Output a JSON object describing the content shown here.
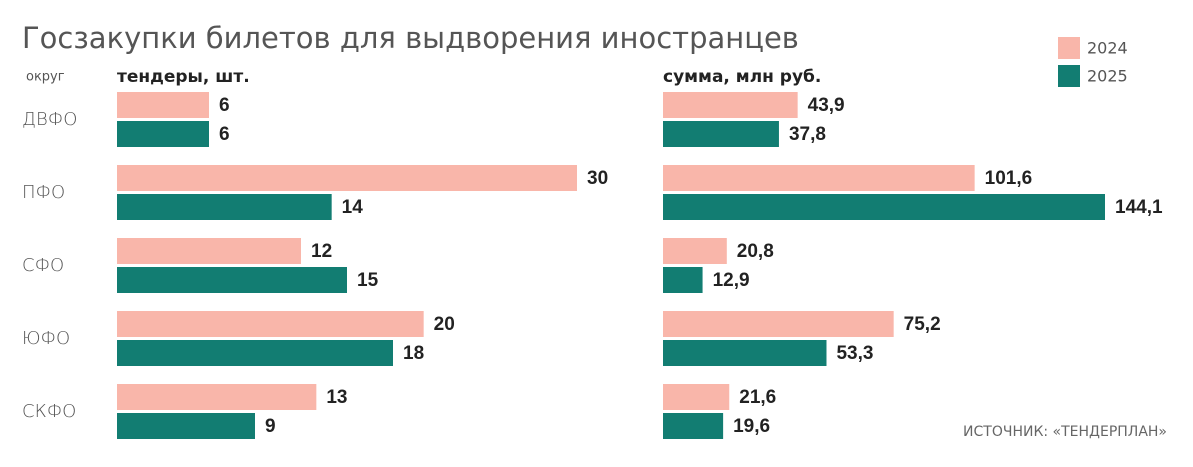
{
  "title": "Госзакупки билетов для выдворения иностранцев",
  "source": "ИСТОЧНИК: «ТЕНДЕРПЛАН»",
  "chart_data": {
    "type": "bar",
    "orientation": "horizontal",
    "category_label": "округ",
    "categories": [
      "ДВФО",
      "ПФО",
      "СФО",
      "ЮФО",
      "СКФО"
    ],
    "legend": "top-right",
    "series": [
      {
        "name": "2024",
        "color": "#f9b6aa"
      },
      {
        "name": "2025",
        "color": "#127d72"
      }
    ],
    "panels": [
      {
        "subtitle": "тендеры, шт.",
        "series": [
          {
            "values": [
              6,
              30,
              12,
              20,
              13
            ]
          },
          {
            "values": [
              6,
              14,
              15,
              18,
              9
            ]
          }
        ]
      },
      {
        "subtitle": "сумма, млн руб.",
        "series": [
          {
            "values": [
              43.9,
              101.6,
              20.8,
              75.2,
              21.6
            ],
            "value_labels": [
              "43,9",
              "101,6",
              "20,8",
              "75,2",
              "21,6"
            ]
          },
          {
            "values": [
              37.8,
              144.1,
              12.9,
              53.3,
              19.6
            ],
            "value_labels": [
              "37,8",
              "144,1",
              "12,9",
              "53,3",
              "19,6"
            ]
          }
        ]
      }
    ]
  }
}
